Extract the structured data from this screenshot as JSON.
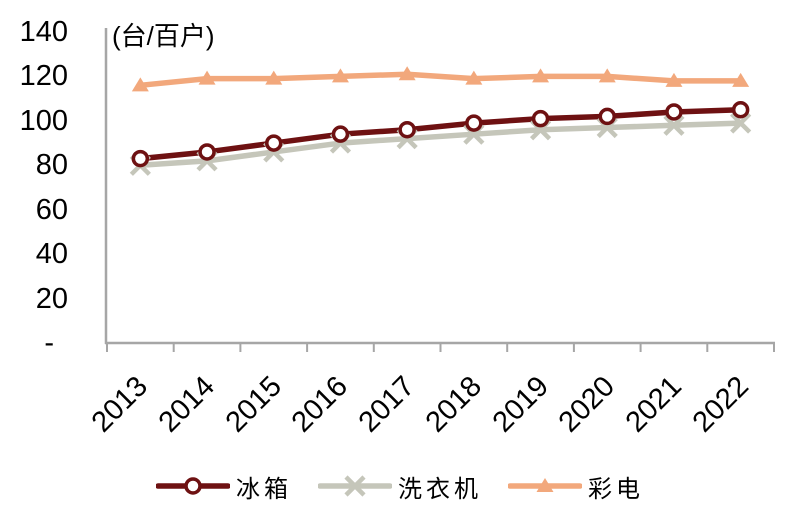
{
  "chart_data": {
    "type": "line",
    "title": "(台/百户)",
    "categories": [
      "2013",
      "2014",
      "2015",
      "2016",
      "2017",
      "2018",
      "2019",
      "2020",
      "2021",
      "2022"
    ],
    "series": [
      {
        "name": "冰箱",
        "marker": "open-circle",
        "color": "#6E1112",
        "values": [
          83,
          86,
          90,
          94,
          96,
          99,
          101,
          102,
          104,
          105
        ]
      },
      {
        "name": "洗衣机",
        "marker": "x",
        "color": "#C5C6BA",
        "values": [
          80,
          82,
          86,
          90,
          92,
          94,
          96,
          97,
          98,
          99
        ]
      },
      {
        "name": "彩电",
        "marker": "triangle",
        "color": "#F2A87C",
        "values": [
          116,
          119,
          119,
          120,
          121,
          119,
          120,
          120,
          118,
          118
        ]
      }
    ],
    "ylim": [
      0,
      140
    ],
    "ytick_step": 20,
    "ytick_labels": [
      "-",
      "20",
      "40",
      "60",
      "80",
      "100",
      "120",
      "140"
    ],
    "grid": false,
    "legend_position": "bottom",
    "axis_color": "#A6A6A6",
    "text_color": "#000000",
    "background": "#FFFFFF"
  }
}
